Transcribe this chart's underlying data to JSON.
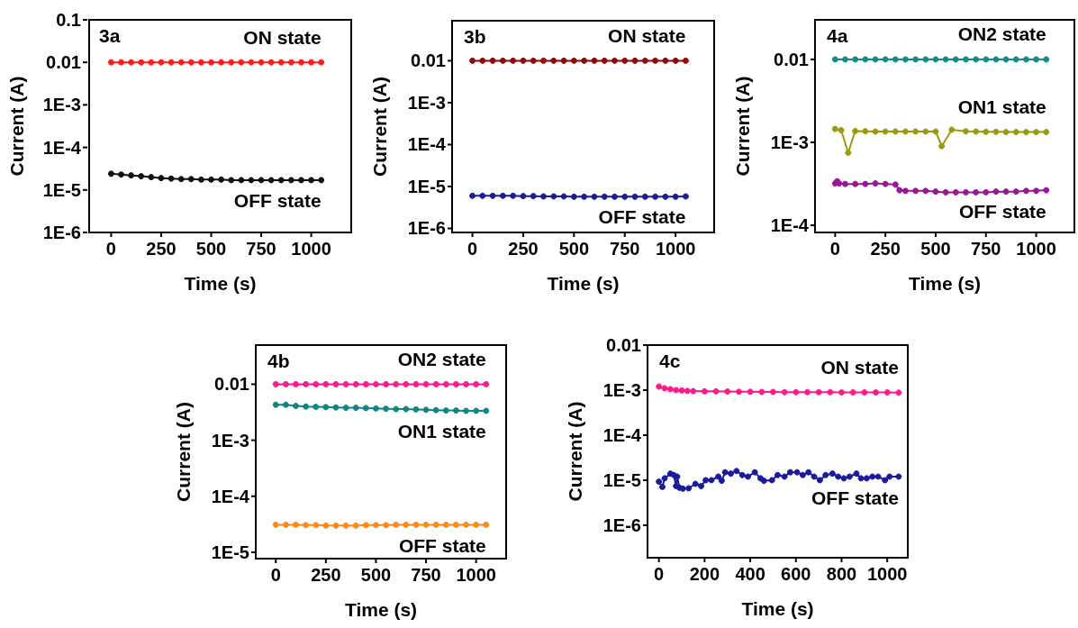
{
  "chart_data": [
    {
      "type": "line",
      "title": "3a",
      "xlabel": "Time (s)",
      "ylabel": "Current (A)",
      "log": true,
      "marker": "circle",
      "line_style": "solid",
      "xlim": [
        -110,
        1200
      ],
      "xticks": [
        0,
        250,
        500,
        750,
        1000
      ],
      "ylim": [
        1e-06,
        0.1
      ],
      "yticks": [
        {
          "value": 1e-06,
          "label": "1E-6"
        },
        {
          "value": 1e-05,
          "label": "1E-5"
        },
        {
          "value": 0.0001,
          "label": "1E-4"
        },
        {
          "value": 0.001,
          "label": "1E-3"
        },
        {
          "value": 0.01,
          "label": "0.01"
        },
        {
          "value": 0.1,
          "label": "0.1"
        }
      ],
      "x": [
        0,
        50,
        100,
        150,
        200,
        250,
        300,
        350,
        400,
        450,
        500,
        550,
        600,
        650,
        700,
        750,
        800,
        850,
        900,
        950,
        1000,
        1050
      ],
      "series": [
        {
          "name": "ON state",
          "color": "#ff1a1a",
          "values": [
            0.01,
            0.01,
            0.01,
            0.01,
            0.01,
            0.01,
            0.01,
            0.01,
            0.01,
            0.01,
            0.01,
            0.01,
            0.01,
            0.01,
            0.01,
            0.01,
            0.01,
            0.01,
            0.01,
            0.01,
            0.01,
            0.01
          ]
        },
        {
          "name": "OFF state",
          "color": "#111111",
          "values": [
            2.4e-05,
            2.3e-05,
            2.2e-05,
            2.1e-05,
            2e-05,
            1.9e-05,
            1.85e-05,
            1.8e-05,
            1.8e-05,
            1.75e-05,
            1.75e-05,
            1.75e-05,
            1.7e-05,
            1.7e-05,
            1.7e-05,
            1.7e-05,
            1.7e-05,
            1.7e-05,
            1.7e-05,
            1.7e-05,
            1.7e-05,
            1.7e-05
          ]
        }
      ]
    },
    {
      "type": "line",
      "title": "3b",
      "xlabel": "Time (s)",
      "ylabel": "Current (A)",
      "log": true,
      "marker": "circle",
      "line_style": "solid",
      "xlim": [
        -100,
        1190
      ],
      "xticks": [
        0,
        250,
        500,
        750,
        1000
      ],
      "ylim": [
        8e-07,
        0.09
      ],
      "yticks": [
        {
          "value": 1e-06,
          "label": "1E-6"
        },
        {
          "value": 1e-05,
          "label": "1E-5"
        },
        {
          "value": 0.0001,
          "label": "1E-4"
        },
        {
          "value": 0.001,
          "label": "1E-3"
        },
        {
          "value": 0.01,
          "label": "0.01"
        }
      ],
      "x": [
        0,
        50,
        100,
        150,
        200,
        250,
        300,
        350,
        400,
        450,
        500,
        550,
        600,
        650,
        700,
        750,
        800,
        850,
        900,
        950,
        1000,
        1050
      ],
      "series": [
        {
          "name": "ON state",
          "color": "#8b0a0a",
          "values": [
            0.01,
            0.01,
            0.01,
            0.01,
            0.01,
            0.01,
            0.01,
            0.01,
            0.01,
            0.01,
            0.01,
            0.01,
            0.01,
            0.01,
            0.01,
            0.01,
            0.01,
            0.01,
            0.01,
            0.01,
            0.01,
            0.01
          ]
        },
        {
          "name": "OFF state",
          "color": "#1c1c96",
          "values": [
            6e-06,
            6e-06,
            6e-06,
            6e-06,
            6e-06,
            5.9e-06,
            5.9e-06,
            5.8e-06,
            5.8e-06,
            5.8e-06,
            5.7e-06,
            5.7e-06,
            5.7e-06,
            5.7e-06,
            5.7e-06,
            5.7e-06,
            5.7e-06,
            5.7e-06,
            5.7e-06,
            5.7e-06,
            5.7e-06,
            5.8e-06
          ]
        }
      ]
    },
    {
      "type": "line",
      "title": "4a",
      "xlabel": "Time (s)",
      "ylabel": "Current (A)",
      "log": true,
      "marker": "circle",
      "line_style": "solid",
      "xlim": [
        -100,
        1190
      ],
      "xticks": [
        0,
        250,
        500,
        750,
        1000
      ],
      "ylim": [
        8.2e-05,
        0.03
      ],
      "yticks": [
        {
          "value": 0.0001,
          "label": "1E-4"
        },
        {
          "value": 0.001,
          "label": "1E-3"
        },
        {
          "value": 0.01,
          "label": "0.01"
        }
      ],
      "x": [
        0,
        50,
        100,
        150,
        200,
        250,
        300,
        350,
        400,
        450,
        500,
        550,
        600,
        650,
        700,
        750,
        800,
        850,
        900,
        950,
        1000,
        1050
      ],
      "series": [
        {
          "name": "ON2 state",
          "color": "#0e8c86",
          "values": [
            0.01,
            0.01,
            0.01,
            0.01,
            0.01,
            0.01,
            0.01,
            0.01,
            0.01,
            0.01,
            0.01,
            0.01,
            0.01,
            0.01,
            0.01,
            0.01,
            0.01,
            0.01,
            0.01,
            0.01,
            0.01,
            0.01
          ]
        },
        {
          "name": "ON1 state",
          "color": "#9c9a0c",
          "x": [
            0,
            30,
            65,
            100,
            150,
            200,
            250,
            300,
            350,
            400,
            450,
            500,
            530,
            580,
            650,
            700,
            750,
            800,
            850,
            900,
            950,
            1000,
            1050
          ],
          "values": [
            0.00145,
            0.0014,
            0.00075,
            0.00137,
            0.00136,
            0.00135,
            0.00135,
            0.00135,
            0.00135,
            0.00135,
            0.00135,
            0.00135,
            0.0009,
            0.00142,
            0.00136,
            0.00135,
            0.00134,
            0.00134,
            0.00133,
            0.00133,
            0.00133,
            0.00133,
            0.00133
          ]
        },
        {
          "name": "OFF state",
          "color": "#961896",
          "x": [
            0,
            10,
            20,
            50,
            100,
            150,
            200,
            250,
            300,
            320,
            350,
            400,
            450,
            500,
            550,
            600,
            650,
            700,
            750,
            800,
            850,
            900,
            950,
            1000,
            1050
          ],
          "values": [
            0.00032,
            0.00034,
            0.00032,
            0.000315,
            0.000315,
            0.000315,
            0.00032,
            0.000315,
            0.00031,
            0.000265,
            0.00026,
            0.00026,
            0.00026,
            0.000255,
            0.00025,
            0.00025,
            0.00025,
            0.00025,
            0.00025,
            0.000255,
            0.000255,
            0.000255,
            0.00026,
            0.00026,
            0.000265
          ]
        }
      ]
    },
    {
      "type": "line",
      "title": "4b",
      "xlabel": "Time (s)",
      "ylabel": "Current (A)",
      "log": true,
      "marker": "circle",
      "line_style": "solid",
      "xlim": [
        -100,
        1150
      ],
      "xticks": [
        0,
        250,
        500,
        750,
        1000
      ],
      "ylim": [
        7.7e-06,
        0.05
      ],
      "yticks": [
        {
          "value": 1e-05,
          "label": "1E-5"
        },
        {
          "value": 0.0001,
          "label": "1E-4"
        },
        {
          "value": 0.001,
          "label": "1E-3"
        },
        {
          "value": 0.01,
          "label": "0.01"
        }
      ],
      "x": [
        0,
        50,
        100,
        150,
        200,
        250,
        300,
        350,
        400,
        450,
        500,
        550,
        600,
        650,
        700,
        750,
        800,
        850,
        900,
        950,
        1000,
        1050
      ],
      "series": [
        {
          "name": "ON2 state",
          "color": "#ff1a8a",
          "values": [
            0.01,
            0.01,
            0.01,
            0.01,
            0.01,
            0.01,
            0.01,
            0.01,
            0.01,
            0.01,
            0.01,
            0.01,
            0.01,
            0.01,
            0.01,
            0.01,
            0.01,
            0.01,
            0.01,
            0.01,
            0.01,
            0.01
          ]
        },
        {
          "name": "ON1 state",
          "color": "#128580",
          "values": [
            0.0043,
            0.0043,
            0.0041,
            0.004,
            0.00395,
            0.0039,
            0.00385,
            0.0038,
            0.0038,
            0.00375,
            0.0037,
            0.00365,
            0.0036,
            0.0036,
            0.00355,
            0.0035,
            0.00345,
            0.0034,
            0.0034,
            0.00335,
            0.00335,
            0.00335
          ]
        },
        {
          "name": "OFF state",
          "color": "#ff8a1a",
          "values": [
            3.1e-05,
            3.1e-05,
            3.1e-05,
            3.05e-05,
            3.05e-05,
            3e-05,
            3e-05,
            3e-05,
            3e-05,
            3.05e-05,
            3.05e-05,
            3.05e-05,
            3.1e-05,
            3.1e-05,
            3.1e-05,
            3.1e-05,
            3.1e-05,
            3.1e-05,
            3.1e-05,
            3.1e-05,
            3.1e-05,
            3.1e-05
          ]
        }
      ]
    },
    {
      "type": "line",
      "title": "4c",
      "xlabel": "Time (s)",
      "ylabel": "Current (A)",
      "log": true,
      "marker": "circle",
      "line_style": "solid",
      "xlim": [
        -50,
        1090
      ],
      "xticks": [
        0,
        200,
        400,
        600,
        800,
        1000
      ],
      "ylim": [
        1.9e-07,
        0.01
      ],
      "yticks": [
        {
          "value": 1e-06,
          "label": "1E-6"
        },
        {
          "value": 1e-05,
          "label": "1E-5"
        },
        {
          "value": 0.0001,
          "label": "1E-4"
        },
        {
          "value": 0.001,
          "label": "1E-3"
        },
        {
          "value": 0.01,
          "label": "0.01"
        }
      ],
      "series": [
        {
          "name": "ON state",
          "color": "#ff1a8c",
          "x": [
            0,
            25,
            50,
            75,
            100,
            125,
            150,
            200,
            250,
            300,
            350,
            400,
            450,
            500,
            550,
            600,
            650,
            700,
            750,
            800,
            850,
            900,
            950,
            1000,
            1050
          ],
          "values": [
            0.0012,
            0.0011,
            0.00105,
            0.001,
            0.00098,
            0.00096,
            0.00095,
            0.00094,
            0.00094,
            0.00093,
            0.00092,
            0.00092,
            0.00091,
            0.00091,
            0.0009,
            0.0009,
            0.0009,
            0.0009,
            0.0009,
            0.00089,
            0.00089,
            0.00089,
            0.00089,
            0.00089,
            0.00088
          ]
        },
        {
          "name": "OFF state",
          "color": "#1a1aa0",
          "x": [
            0,
            15,
            25,
            50,
            65,
            75,
            80,
            90,
            105,
            130,
            160,
            185,
            205,
            230,
            260,
            275,
            290,
            315,
            340,
            365,
            390,
            420,
            445,
            460,
            495,
            520,
            550,
            575,
            605,
            630,
            655,
            680,
            705,
            730,
            760,
            785,
            810,
            835,
            865,
            885,
            910,
            935,
            960,
            990,
            1010,
            1050
          ],
          "values": [
            9.3e-06,
            7.1e-06,
            1.1e-05,
            1.4e-05,
            1.3e-05,
            7.4e-06,
            1.2e-05,
            6.8e-06,
            6.5e-06,
            6.6e-06,
            8.3e-06,
            7.4e-06,
            1e-05,
            1e-05,
            1.2e-05,
            9.7e-06,
            1.5e-05,
            1.4e-05,
            1.6e-05,
            1.3e-05,
            1.2e-05,
            1.5e-05,
            1.1e-05,
            9.7e-06,
            1e-05,
            1.3e-05,
            1.2e-05,
            1.5e-05,
            1.5e-05,
            1.3e-05,
            1.5e-05,
            1.2e-05,
            1e-05,
            1.3e-05,
            1.4e-05,
            1.2e-05,
            1.1e-05,
            1.2e-05,
            1.4e-05,
            1.1e-05,
            1.1e-05,
            1.2e-05,
            1.2e-05,
            1e-05,
            1.2e-05,
            1.2e-05
          ]
        }
      ]
    }
  ]
}
